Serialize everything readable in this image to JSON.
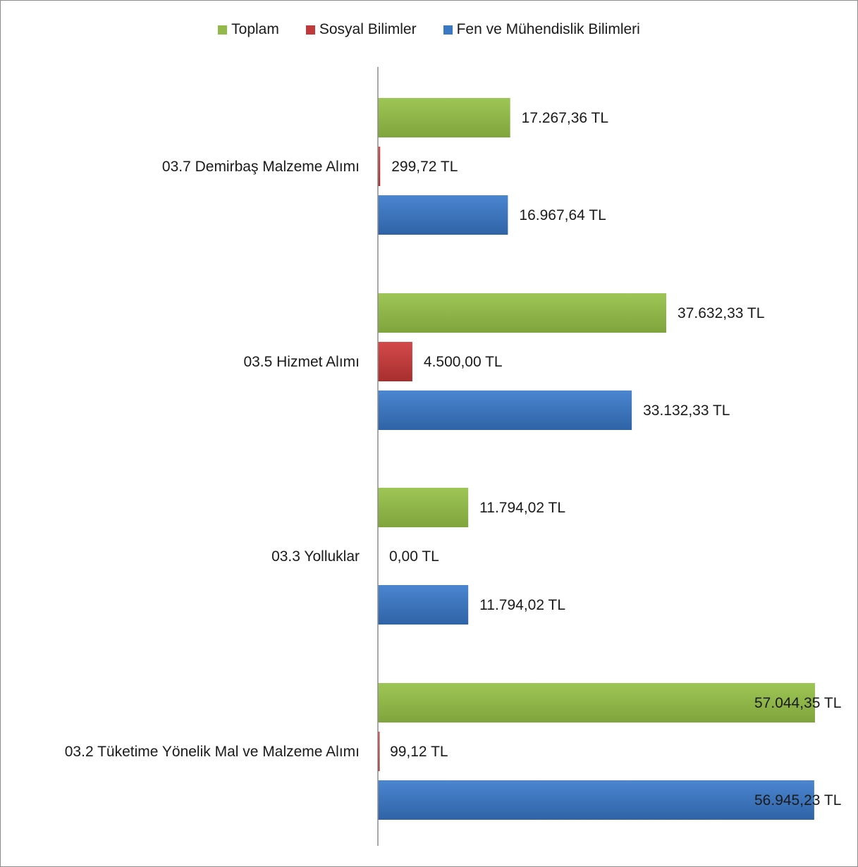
{
  "chart_data": {
    "type": "bar",
    "orientation": "horizontal",
    "categories": [
      "03.7 Demirbaş Malzeme Alımı",
      "03.5 Hizmet Alımı",
      "03.3 Yolluklar",
      "03.2 Tüketime Yönelik Mal ve Malzeme Alımı"
    ],
    "series": [
      {
        "name": "Toplam",
        "color": "#92b94a",
        "values": [
          17267.36,
          37632.33,
          11794.02,
          57044.35
        ],
        "labels": [
          "17.267,36 TL",
          "37.632,33 TL",
          "11.794,02 TL",
          "57.044,35 TL"
        ]
      },
      {
        "name": "Sosyal Bilimler",
        "color": "#c0393b",
        "values": [
          299.72,
          4500.0,
          0.0,
          99.12
        ],
        "labels": [
          "299,72 TL",
          "4.500,00 TL",
          "0,00 TL",
          "99,12 TL"
        ]
      },
      {
        "name": "Fen ve Mühendislik Bilimleri",
        "color": "#3b78c3",
        "values": [
          16967.64,
          33132.33,
          11794.02,
          56945.23
        ],
        "labels": [
          "16.967,64 TL",
          "33.132,33 TL",
          "11.794,02 TL",
          "56.945,23 TL"
        ]
      }
    ],
    "legend_position": "top",
    "grid": false,
    "xlim": [
      0,
      57044.35
    ]
  }
}
